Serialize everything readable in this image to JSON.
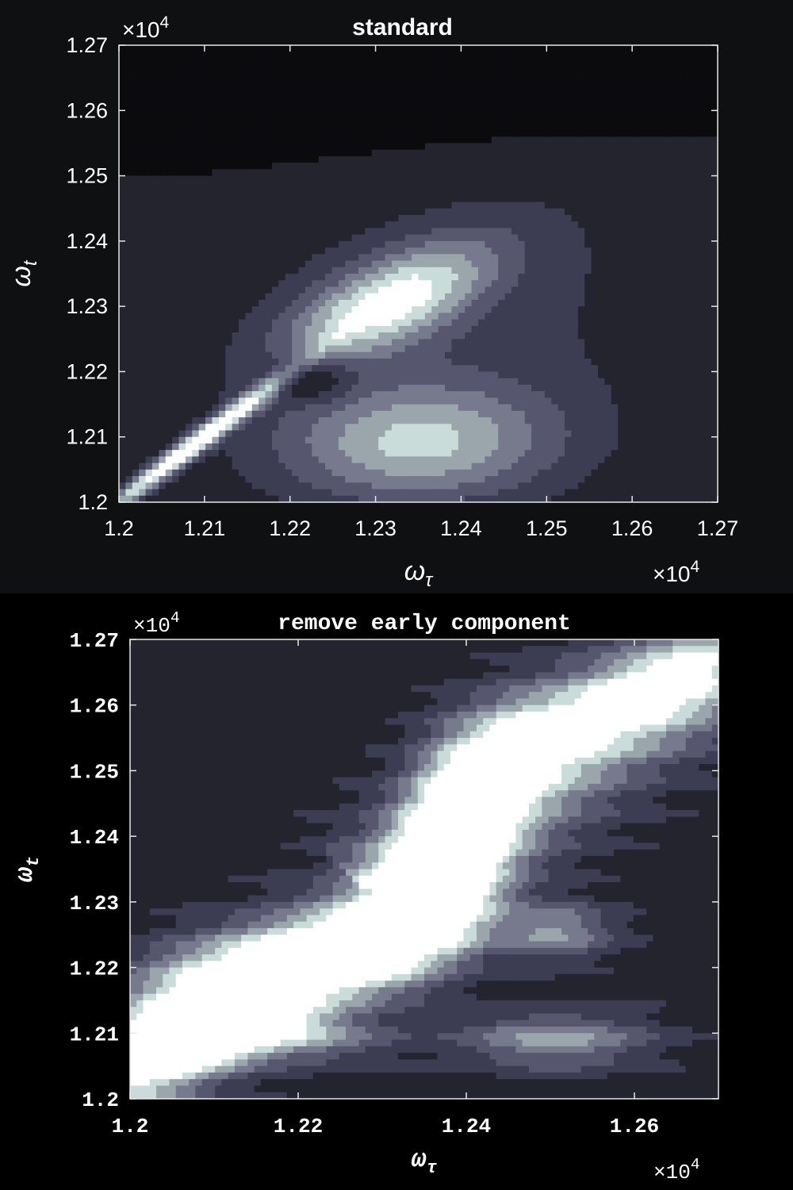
{
  "chart_data": [
    {
      "type": "heatmap",
      "subtype": "filled-contour",
      "title": "standard",
      "xlabel": "ω_τ",
      "ylabel": "ω_t",
      "x_exponent_label": "×10^4",
      "y_exponent_label": "×10^4",
      "xlim": [
        1.2,
        1.27
      ],
      "ylim": [
        1.2,
        1.27
      ],
      "xticks": [
        "1.2",
        "1.21",
        "1.22",
        "1.23",
        "1.24",
        "1.25",
        "1.26",
        "1.27"
      ],
      "yticks": [
        "1.2",
        "1.21",
        "1.22",
        "1.23",
        "1.24",
        "1.25",
        "1.26",
        "1.27"
      ],
      "colormap": [
        "#0b0b0e",
        "#24242e",
        "#3c3c52",
        "#56566f",
        "#767a8c",
        "#9aa6ac",
        "#c9dcd9",
        "#ffffff"
      ],
      "features": [
        {
          "name": "diagonal ridge",
          "x": 1.208,
          "y": 1.208,
          "peak": 0.95
        },
        {
          "name": "upper peak",
          "x": 1.231,
          "y": 1.23,
          "peak": 0.85
        },
        {
          "name": "lower peak",
          "x": 1.235,
          "y": 1.209,
          "peak": 0.75
        },
        {
          "name": "minimum",
          "x": 1.223,
          "y": 1.219,
          "peak": 0.0
        }
      ]
    },
    {
      "type": "heatmap",
      "subtype": "filled-contour",
      "title": "remove early component",
      "xlabel": "ω_τ",
      "ylabel": "ω_t",
      "x_exponent_label": "×10^4",
      "y_exponent_label": "×10^4",
      "xlim": [
        1.2,
        1.27
      ],
      "ylim": [
        1.2,
        1.27
      ],
      "xticks": [
        "1.2",
        "1.22",
        "1.24",
        "1.26"
      ],
      "yticks": [
        "1.2",
        "1.21",
        "1.22",
        "1.23",
        "1.24",
        "1.25",
        "1.26",
        "1.27"
      ],
      "colormap": [
        "#0b0b0e",
        "#24242e",
        "#3c3c52",
        "#56566f",
        "#767a8c",
        "#9aa6ac",
        "#c9dcd9",
        "#ffffff"
      ],
      "features": [
        {
          "name": "diagonal ridge",
          "x": 1.23,
          "y": 1.228,
          "peak": 1.0
        },
        {
          "name": "low-frequency peak",
          "x": 1.208,
          "y": 1.209,
          "peak": 1.0
        },
        {
          "name": "side peak",
          "x": 1.251,
          "y": 1.226,
          "peak": 0.55
        },
        {
          "name": "side peak",
          "x": 1.251,
          "y": 1.209,
          "peak": 0.55
        },
        {
          "name": "corner peak",
          "x": 1.263,
          "y": 1.263,
          "peak": 0.4
        }
      ]
    }
  ]
}
